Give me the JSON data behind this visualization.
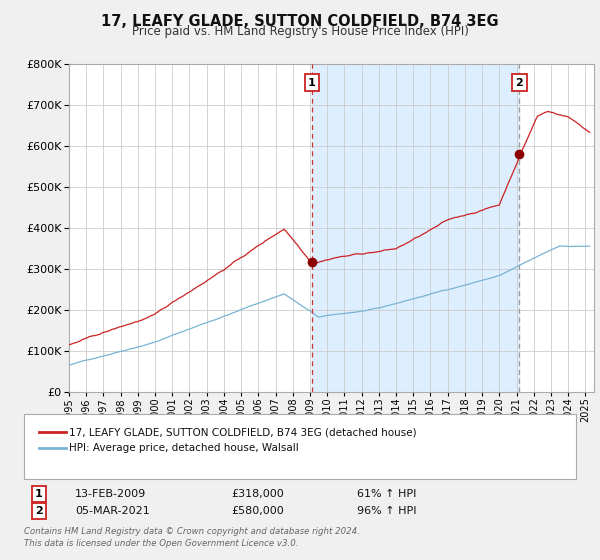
{
  "title": "17, LEAFY GLADE, SUTTON COLDFIELD, B74 3EG",
  "subtitle": "Price paid vs. HM Land Registry's House Price Index (HPI)",
  "red_label": "17, LEAFY GLADE, SUTTON COLDFIELD, B74 3EG (detached house)",
  "blue_label": "HPI: Average price, detached house, Walsall",
  "marker1_date": 2009.12,
  "marker1_label": "1",
  "marker1_price_red": 318000,
  "marker1_date_str": "13-FEB-2009",
  "marker1_price_str": "£318,000",
  "marker1_hpi_str": "61% ↑ HPI",
  "marker2_date": 2021.17,
  "marker2_label": "2",
  "marker2_price_red": 580000,
  "marker2_date_str": "05-MAR-2021",
  "marker2_price_str": "£580,000",
  "marker2_hpi_str": "96% ↑ HPI",
  "footer1": "Contains HM Land Registry data © Crown copyright and database right 2024.",
  "footer2": "This data is licensed under the Open Government Licence v3.0.",
  "xlim": [
    1995,
    2025.5
  ],
  "ylim": [
    0,
    800000
  ],
  "fig_bg": "#f0f0f0",
  "plot_bg": "#ffffff",
  "shaded_region_color": "#ddeeff",
  "red_line_color": "#cc2222",
  "blue_line_color": "#7ab3d4",
  "marker_color": "#8b0000",
  "grid_color": "#cccccc",
  "vline1_color": "#cc3333",
  "vline2_color": "#999999"
}
